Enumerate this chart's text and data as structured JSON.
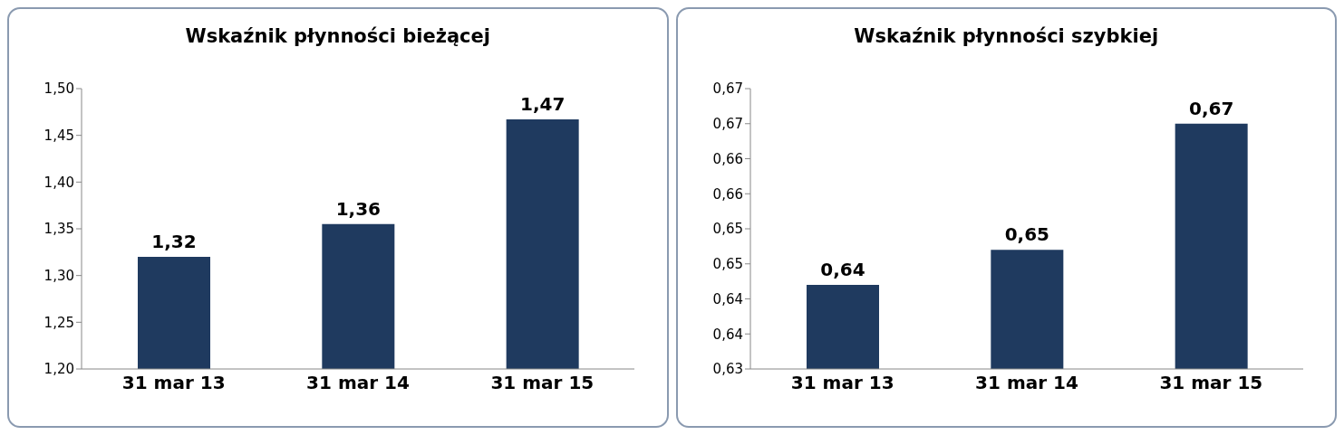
{
  "chart_data": [
    {
      "type": "bar",
      "title": "Wskaźnik płynności bieżącej",
      "categories": [
        "31 mar 13",
        "31 mar 14",
        "31 mar 15"
      ],
      "values": [
        1.32,
        1.355,
        1.467
      ],
      "value_labels": [
        "1,32",
        "1,36",
        "1,47"
      ],
      "color": "#1f3a5f",
      "ylim": [
        1.2,
        1.5
      ],
      "yticks": [
        {
          "value": 1.2,
          "label": "1,20"
        },
        {
          "value": 1.25,
          "label": "1,25"
        },
        {
          "value": 1.3,
          "label": "1,30"
        },
        {
          "value": 1.35,
          "label": "1,35"
        },
        {
          "value": 1.4,
          "label": "1,40"
        },
        {
          "value": 1.45,
          "label": "1,45"
        },
        {
          "value": 1.5,
          "label": "1,50"
        }
      ],
      "grid": false,
      "legend": false
    },
    {
      "type": "bar",
      "title": "Wskaźnik płynności szybkiej",
      "categories": [
        "31 mar 13",
        "31 mar 14",
        "31 mar 15"
      ],
      "values": [
        0.642,
        0.647,
        0.665
      ],
      "value_labels": [
        "0,64",
        "0,65",
        "0,67"
      ],
      "color": "#1f3a5f",
      "ylim": [
        0.63,
        0.67
      ],
      "yticks": [
        {
          "value": 0.63,
          "label": "0,63"
        },
        {
          "value": 0.635,
          "label": "0,64"
        },
        {
          "value": 0.64,
          "label": "0,64"
        },
        {
          "value": 0.645,
          "label": "0,65"
        },
        {
          "value": 0.65,
          "label": "0,65"
        },
        {
          "value": 0.655,
          "label": "0,66"
        },
        {
          "value": 0.66,
          "label": "0,66"
        },
        {
          "value": 0.665,
          "label": "0,67"
        },
        {
          "value": 0.67,
          "label": "0,67"
        }
      ],
      "grid": false,
      "legend": false
    }
  ]
}
